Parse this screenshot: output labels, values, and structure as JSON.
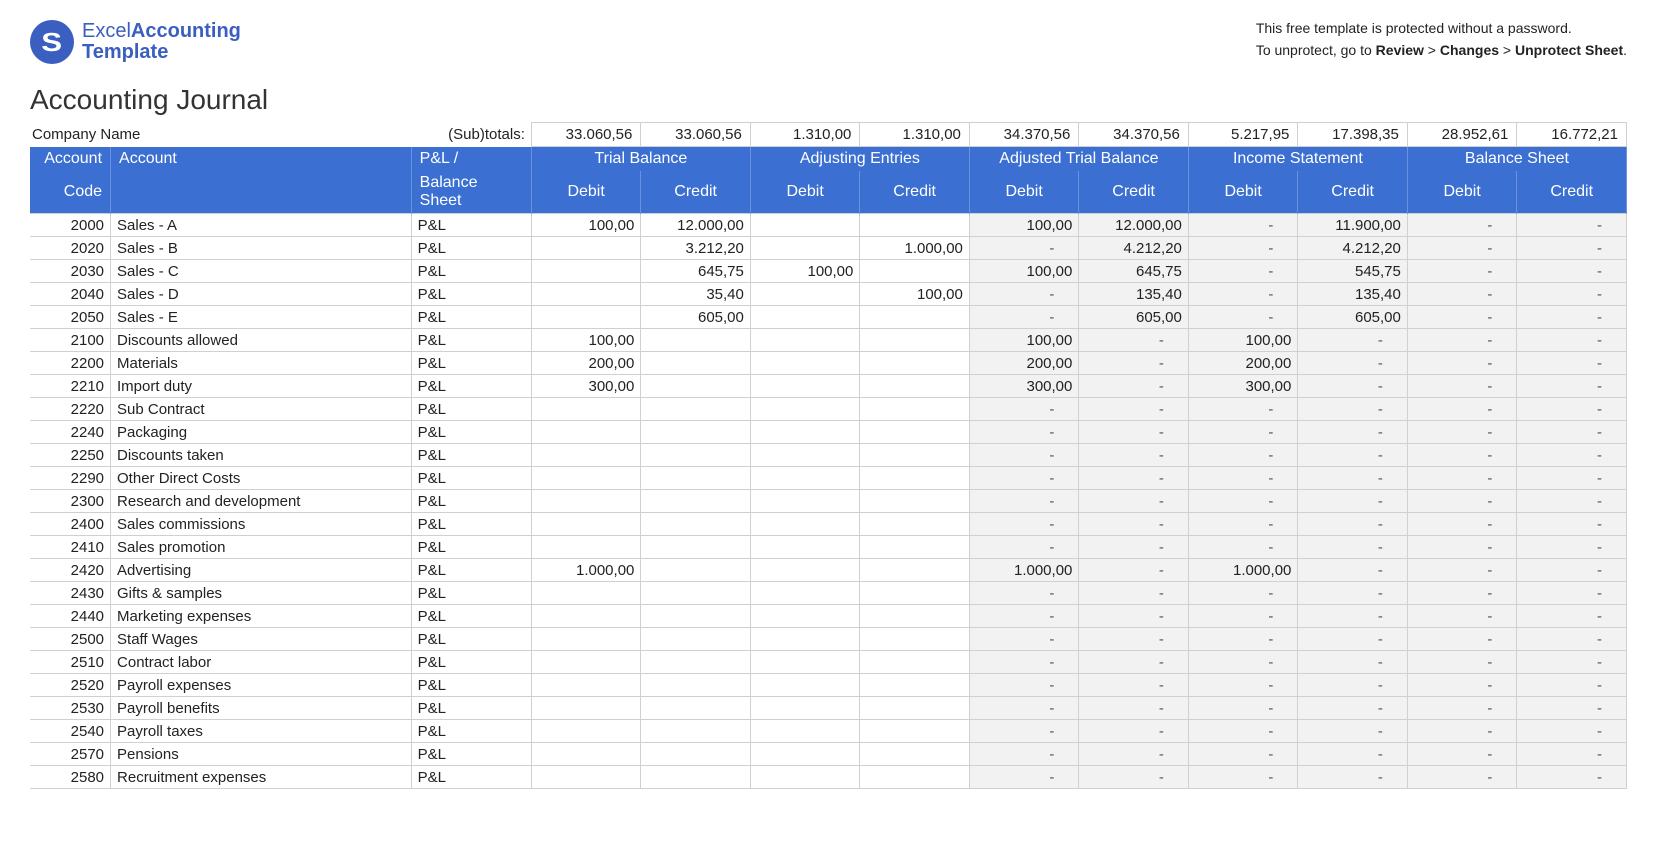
{
  "logo": {
    "word1": "Excel",
    "word2": "Accounting",
    "word3": "Template"
  },
  "notice": {
    "line1": "This free template is protected without a password.",
    "line2_pre": "To unprotect, go to ",
    "path_review": "Review",
    "path_changes": "Changes",
    "path_unprotect": "Unprotect Sheet",
    "sep": " > "
  },
  "title": "Accounting Journal",
  "labels": {
    "company": "Company Name",
    "subtotals": "(Sub)totals:",
    "account_code_l1": "Account",
    "account_code_l2": "Code",
    "account_l1": "Account",
    "account_l2": "",
    "type_l1": "P&L /",
    "type_l2": "Balance Sheet",
    "groups": [
      "Trial Balance",
      "Adjusting Entries",
      "Adjusted Trial Balance",
      "Income Statement",
      "Balance Sheet"
    ],
    "debit": "Debit",
    "credit": "Credit"
  },
  "subtotals": [
    "33.060,56",
    "33.060,56",
    "1.310,00",
    "1.310,00",
    "34.370,56",
    "34.370,56",
    "5.217,95",
    "17.398,35",
    "28.952,61",
    "16.772,21"
  ],
  "colors": {
    "header_bg": "#3b6fd1",
    "header_border": "#6a92de",
    "grid": "#d0d0d0",
    "shade": "#f2f2f2",
    "logo": "#3b5fc0",
    "text": "#222222"
  },
  "column_groups_shaded_start_index": 4,
  "dash_char": "-",
  "rows": [
    {
      "code": "2000",
      "acct": "Sales - A",
      "type": "P&L",
      "v": [
        "100,00",
        "12.000,00",
        "",
        "",
        "100,00",
        "12.000,00",
        "-",
        "11.900,00",
        "-",
        "-"
      ]
    },
    {
      "code": "2020",
      "acct": "Sales - B",
      "type": "P&L",
      "v": [
        "",
        "3.212,20",
        "",
        "1.000,00",
        "-",
        "4.212,20",
        "-",
        "4.212,20",
        "-",
        "-"
      ]
    },
    {
      "code": "2030",
      "acct": "Sales - C",
      "type": "P&L",
      "v": [
        "",
        "645,75",
        "100,00",
        "",
        "100,00",
        "645,75",
        "-",
        "545,75",
        "-",
        "-"
      ]
    },
    {
      "code": "2040",
      "acct": "Sales - D",
      "type": "P&L",
      "v": [
        "",
        "35,40",
        "",
        "100,00",
        "-",
        "135,40",
        "-",
        "135,40",
        "-",
        "-"
      ]
    },
    {
      "code": "2050",
      "acct": "Sales - E",
      "type": "P&L",
      "v": [
        "",
        "605,00",
        "",
        "",
        "-",
        "605,00",
        "-",
        "605,00",
        "-",
        "-"
      ]
    },
    {
      "code": "2100",
      "acct": "Discounts allowed",
      "type": "P&L",
      "v": [
        "100,00",
        "",
        "",
        "",
        "100,00",
        "-",
        "100,00",
        "-",
        "-",
        "-"
      ]
    },
    {
      "code": "2200",
      "acct": "Materials",
      "type": "P&L",
      "v": [
        "200,00",
        "",
        "",
        "",
        "200,00",
        "-",
        "200,00",
        "-",
        "-",
        "-"
      ]
    },
    {
      "code": "2210",
      "acct": "Import duty",
      "type": "P&L",
      "v": [
        "300,00",
        "",
        "",
        "",
        "300,00",
        "-",
        "300,00",
        "-",
        "-",
        "-"
      ]
    },
    {
      "code": "2220",
      "acct": "Sub Contract",
      "type": "P&L",
      "v": [
        "",
        "",
        "",
        "",
        "-",
        "-",
        "-",
        "-",
        "-",
        "-"
      ]
    },
    {
      "code": "2240",
      "acct": "Packaging",
      "type": "P&L",
      "v": [
        "",
        "",
        "",
        "",
        "-",
        "-",
        "-",
        "-",
        "-",
        "-"
      ]
    },
    {
      "code": "2250",
      "acct": "Discounts taken",
      "type": "P&L",
      "v": [
        "",
        "",
        "",
        "",
        "-",
        "-",
        "-",
        "-",
        "-",
        "-"
      ]
    },
    {
      "code": "2290",
      "acct": "Other Direct Costs",
      "type": "P&L",
      "v": [
        "",
        "",
        "",
        "",
        "-",
        "-",
        "-",
        "-",
        "-",
        "-"
      ]
    },
    {
      "code": "2300",
      "acct": "Research and development",
      "type": "P&L",
      "v": [
        "",
        "",
        "",
        "",
        "-",
        "-",
        "-",
        "-",
        "-",
        "-"
      ]
    },
    {
      "code": "2400",
      "acct": "Sales commissions",
      "type": "P&L",
      "v": [
        "",
        "",
        "",
        "",
        "-",
        "-",
        "-",
        "-",
        "-",
        "-"
      ]
    },
    {
      "code": "2410",
      "acct": "Sales promotion",
      "type": "P&L",
      "v": [
        "",
        "",
        "",
        "",
        "-",
        "-",
        "-",
        "-",
        "-",
        "-"
      ]
    },
    {
      "code": "2420",
      "acct": "Advertising",
      "type": "P&L",
      "v": [
        "1.000,00",
        "",
        "",
        "",
        "1.000,00",
        "-",
        "1.000,00",
        "-",
        "-",
        "-"
      ]
    },
    {
      "code": "2430",
      "acct": "Gifts & samples",
      "type": "P&L",
      "v": [
        "",
        "",
        "",
        "",
        "-",
        "-",
        "-",
        "-",
        "-",
        "-"
      ]
    },
    {
      "code": "2440",
      "acct": "Marketing expenses",
      "type": "P&L",
      "v": [
        "",
        "",
        "",
        "",
        "-",
        "-",
        "-",
        "-",
        "-",
        "-"
      ]
    },
    {
      "code": "2500",
      "acct": "Staff Wages",
      "type": "P&L",
      "v": [
        "",
        "",
        "",
        "",
        "-",
        "-",
        "-",
        "-",
        "-",
        "-"
      ]
    },
    {
      "code": "2510",
      "acct": "Contract labor",
      "type": "P&L",
      "v": [
        "",
        "",
        "",
        "",
        "-",
        "-",
        "-",
        "-",
        "-",
        "-"
      ]
    },
    {
      "code": "2520",
      "acct": "Payroll expenses",
      "type": "P&L",
      "v": [
        "",
        "",
        "",
        "",
        "-",
        "-",
        "-",
        "-",
        "-",
        "-"
      ]
    },
    {
      "code": "2530",
      "acct": "Payroll benefits",
      "type": "P&L",
      "v": [
        "",
        "",
        "",
        "",
        "-",
        "-",
        "-",
        "-",
        "-",
        "-"
      ]
    },
    {
      "code": "2540",
      "acct": "Payroll taxes",
      "type": "P&L",
      "v": [
        "",
        "",
        "",
        "",
        "-",
        "-",
        "-",
        "-",
        "-",
        "-"
      ]
    },
    {
      "code": "2570",
      "acct": "Pensions",
      "type": "P&L",
      "v": [
        "",
        "",
        "",
        "",
        "-",
        "-",
        "-",
        "-",
        "-",
        "-"
      ]
    },
    {
      "code": "2580",
      "acct": "Recruitment expenses",
      "type": "P&L",
      "v": [
        "",
        "",
        "",
        "",
        "-",
        "-",
        "-",
        "-",
        "-",
        "-"
      ]
    }
  ]
}
